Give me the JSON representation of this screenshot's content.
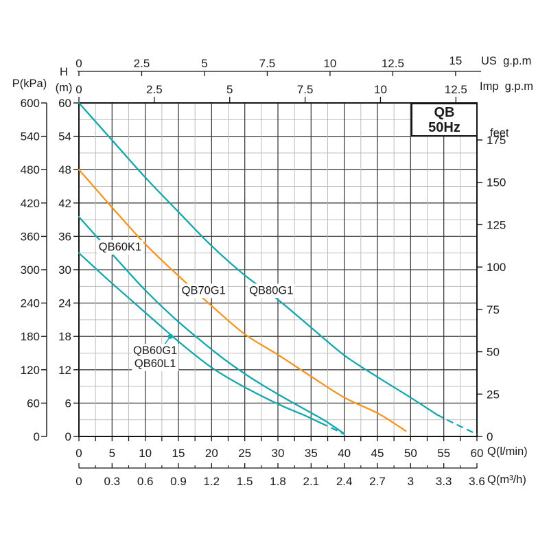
{
  "title": {
    "line1": "QB",
    "line2": "50Hz"
  },
  "labels": {
    "p_axis": "P(kPa)",
    "h_axis": "H",
    "h_unit": "(m)",
    "us_gpm": "US  g.p.m",
    "imp_gpm": "Imp  g.p.m",
    "feet": "feet",
    "q_lmin": "Q(l/min)",
    "q_m3h": "Q(m³/h)"
  },
  "colors": {
    "teal": "#12a7ad",
    "orange": "#f7941e",
    "grid_major": "#3e3e3e",
    "grid_minor": "#b6b6b6",
    "frame": "#141414",
    "text": "#1a1a1a"
  },
  "chart_data": {
    "type": "line",
    "title": "QB 50Hz",
    "grid": true,
    "x_axis_lmin": {
      "label": "Q(l/min)",
      "range": [
        0,
        60
      ],
      "tick_labels": [
        "0",
        "5",
        "10",
        "15",
        "20",
        "25",
        "30",
        "35",
        "40",
        "45",
        "50",
        "55",
        "60"
      ],
      "tick_values": [
        0,
        5,
        10,
        15,
        20,
        25,
        30,
        35,
        40,
        45,
        50,
        55,
        60
      ],
      "minor_tick_step": 2.5
    },
    "x_axis_m3h": {
      "label": "Q(m³/h)",
      "tick_labels": [
        "0",
        "0.3",
        "0.6",
        "0.9",
        "1.2",
        "1.5",
        "1.8",
        "2.1",
        "2.4",
        "2.7",
        "3",
        "3.3",
        "3.6"
      ],
      "tick_values": [
        0,
        0.3,
        0.6,
        0.9,
        1.2,
        1.5,
        1.8,
        2.1,
        2.4,
        2.7,
        3.0,
        3.3,
        3.6
      ],
      "lmin_per_unit": 16.6667
    },
    "x_axis_us_gpm": {
      "label": "US  g.p.m",
      "tick_labels": [
        "0",
        "2.5",
        "5",
        "7.5",
        "10",
        "12.5",
        "15"
      ],
      "tick_values": [
        0,
        2.5,
        5,
        7.5,
        10,
        12.5,
        15
      ],
      "lmin_per_unit": 3.7854
    },
    "x_axis_imp_gpm": {
      "label": "Imp  g.p.m",
      "tick_labels": [
        "0",
        "2.5",
        "5",
        "7.5",
        "10",
        "12.5"
      ],
      "tick_values": [
        0,
        2.5,
        5,
        7.5,
        10,
        12.5
      ],
      "lmin_per_unit": 4.5461
    },
    "y_axis_m": {
      "label": "H (m)",
      "range": [
        0,
        60
      ],
      "tick_labels": [
        "60",
        "54",
        "48",
        "42",
        "36",
        "30",
        "24",
        "18",
        "12",
        "6",
        "0"
      ],
      "tick_values": [
        60,
        54,
        48,
        42,
        36,
        30,
        24,
        18,
        12,
        6,
        0
      ],
      "minor_grid_step": 3
    },
    "y_axis_kpa": {
      "label": "P(kPa)",
      "tick_labels": [
        "600",
        "540",
        "480",
        "420",
        "360",
        "300",
        "240",
        "180",
        "120",
        "60",
        "0"
      ],
      "tick_values": [
        600,
        540,
        480,
        420,
        360,
        300,
        240,
        180,
        120,
        60,
        0
      ]
    },
    "y_axis_feet": {
      "label": "feet",
      "tick_labels": [
        "175",
        "150",
        "125",
        "100",
        "75",
        "50",
        "25",
        "0"
      ],
      "tick_values": [
        175,
        150,
        125,
        100,
        75,
        50,
        25,
        0
      ],
      "m_per_unit": 0.3048
    },
    "series": [
      {
        "name": "QB80G1",
        "color_key": "teal",
        "points_solid": [
          [
            0,
            60
          ],
          [
            5,
            53.3
          ],
          [
            10,
            46.6
          ],
          [
            15,
            40.4
          ],
          [
            20,
            34.3
          ],
          [
            25,
            29.0
          ],
          [
            30,
            24.6
          ],
          [
            35,
            19.6
          ],
          [
            40,
            14.6
          ],
          [
            45,
            10.7
          ],
          [
            50,
            7.0
          ],
          [
            54,
            3.9
          ]
        ],
        "points_dashed": [
          [
            54,
            3.9
          ],
          [
            57,
            2.1
          ],
          [
            60,
            0.4
          ]
        ],
        "labels": [
          "QB80G1"
        ],
        "label_at": [
          29.0,
          26.2
        ]
      },
      {
        "name": "QB70G1",
        "color_key": "orange",
        "points_solid": [
          [
            0,
            48
          ],
          [
            5,
            41.2
          ],
          [
            10,
            34.6
          ],
          [
            15,
            28.9
          ],
          [
            20,
            23.5
          ],
          [
            25,
            18.4
          ],
          [
            30,
            14.7
          ],
          [
            35,
            10.8
          ],
          [
            40,
            7.0
          ],
          [
            45,
            4.2
          ],
          [
            48.5,
            1.6
          ]
        ],
        "points_dashed": [
          [
            48.5,
            1.6
          ],
          [
            50,
            0.4
          ]
        ],
        "labels": [
          "QB70G1"
        ],
        "label_at": [
          18.8,
          26.2
        ]
      },
      {
        "name": "QB60K1",
        "color_key": "teal",
        "points_solid": [
          [
            0,
            39.5
          ],
          [
            3,
            35.5
          ],
          [
            6,
            31.5
          ],
          [
            10,
            26.3
          ],
          [
            14,
            21.7
          ],
          [
            18,
            17.6
          ],
          [
            22,
            13.8
          ],
          [
            26,
            10.5
          ],
          [
            30,
            7.6
          ],
          [
            34,
            4.9
          ],
          [
            37,
            2.9
          ],
          [
            40,
            0.5
          ]
        ],
        "points_dashed": [],
        "labels": [
          "QB60K1"
        ],
        "label_at": [
          6.2,
          34.0
        ]
      },
      {
        "name": "QB60G1 / QB60L1",
        "color_key": "teal",
        "points_solid": [
          [
            0,
            33
          ],
          [
            4,
            28.6
          ],
          [
            8,
            24.4
          ],
          [
            12,
            20.2
          ],
          [
            16,
            16.1
          ],
          [
            20,
            12.4
          ],
          [
            24,
            9.5
          ],
          [
            28,
            7.0
          ],
          [
            31,
            5.3
          ],
          [
            34,
            3.8
          ],
          [
            36.5,
            2.4
          ]
        ],
        "points_dashed": [
          [
            36.5,
            2.4
          ],
          [
            38.5,
            1.3
          ],
          [
            40,
            0.4
          ]
        ],
        "labels": [
          "QB60G1",
          "QB60L1"
        ],
        "label_at": [
          11.5,
          14.2
        ],
        "marker_at": [
          13.8,
          18.0
        ]
      }
    ]
  }
}
